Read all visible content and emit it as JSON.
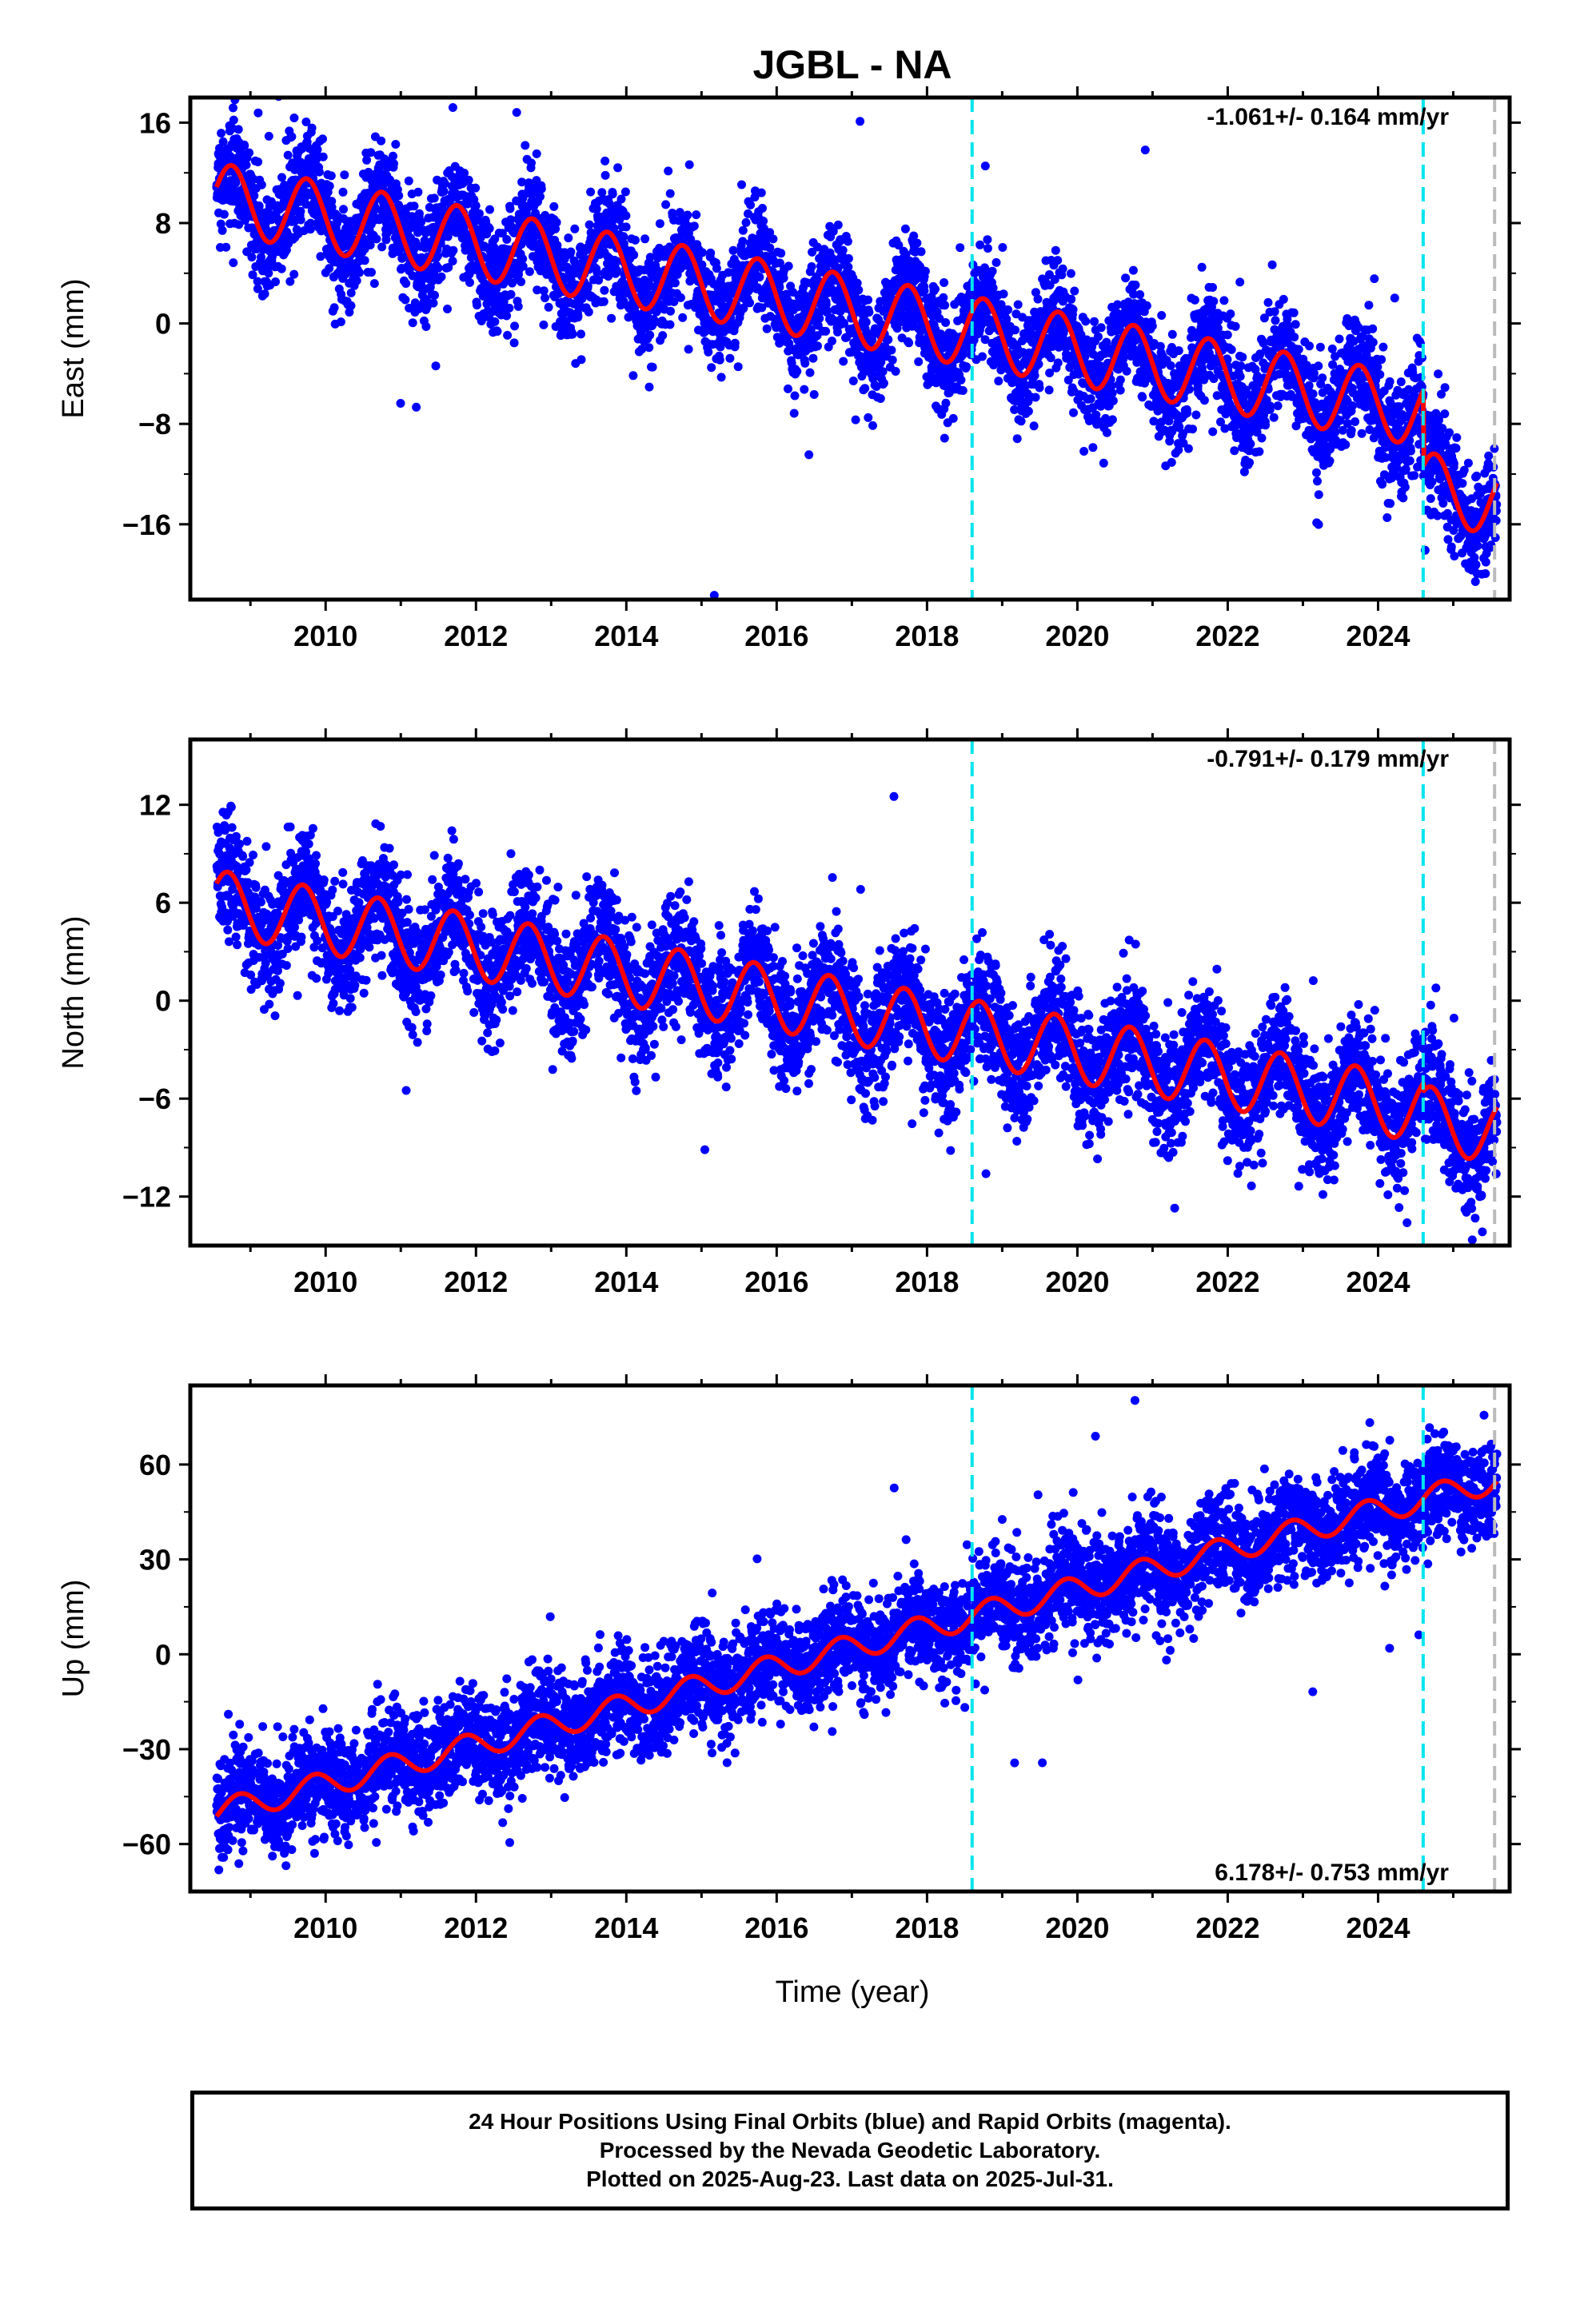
{
  "title": "JGBL - NA",
  "xlabel": "Time (year)",
  "colors": {
    "points": "#0000ff",
    "model": "#ff0000",
    "cyan_marker": "#00e5ee",
    "gray_marker": "#bbbbbb"
  },
  "chart_data": [
    {
      "type": "scatter",
      "ylabel": "East (mm)",
      "rate": "-1.061+/- 0.164 mm/yr",
      "rate_position": "top-right",
      "xlim": [
        2008.2,
        2025.75
      ],
      "ylim": [
        -22,
        18
      ],
      "x_ticks": [
        "2010",
        "2012",
        "2014",
        "2016",
        "2018",
        "2020",
        "2022",
        "2024"
      ],
      "y_ticks": [
        "16",
        "8",
        "0",
        "−8",
        "−16"
      ],
      "y_tick_values": [
        16,
        8,
        0,
        -8,
        -16
      ],
      "markers_cyan": [
        2018.6,
        2024.6
      ],
      "marker_gray": 2025.55,
      "series": [
        {
          "kind": "scatter",
          "x_start": 2008.55,
          "x_end": 2025.58,
          "slope": -1.061,
          "intercept_2008": 10.0,
          "annual_amp": 2.8,
          "annual_phase": 0.5,
          "step_at": 2024.6,
          "step": -6.0,
          "noise": 2.2
        },
        {
          "kind": "line",
          "x_start": 2008.55,
          "x_end": 2025.58,
          "slope": -1.061,
          "intercept_2008": 10.0,
          "annual_amp": 2.8,
          "annual_phase": 0.5,
          "step_at": 2024.6,
          "step": -6.0
        }
      ]
    },
    {
      "type": "scatter",
      "ylabel": "North (mm)",
      "rate": "-0.791+/- 0.179 mm/yr",
      "rate_position": "top-right",
      "xlim": [
        2008.2,
        2025.75
      ],
      "ylim": [
        -15,
        16
      ],
      "x_ticks": [
        "2010",
        "2012",
        "2014",
        "2016",
        "2018",
        "2020",
        "2022",
        "2024"
      ],
      "y_ticks": [
        "12",
        "6",
        "0",
        "−6",
        "−12"
      ],
      "y_tick_values": [
        12,
        6,
        0,
        -6,
        -12
      ],
      "markers_cyan": [
        2018.6,
        2024.6
      ],
      "marker_gray": 2025.55,
      "series": [
        {
          "kind": "scatter",
          "x_start": 2008.55,
          "x_end": 2025.58,
          "slope": -0.791,
          "intercept_2008": 6.0,
          "annual_amp": 2.0,
          "annual_phase": 0.45,
          "step_at": 2024.6,
          "step": -0.5,
          "noise": 1.8
        },
        {
          "kind": "line",
          "x_start": 2008.55,
          "x_end": 2025.58,
          "slope": -0.791,
          "intercept_2008": 6.0,
          "annual_amp": 2.0,
          "annual_phase": 0.45,
          "step_at": 2024.6,
          "step": -0.5
        }
      ]
    },
    {
      "type": "scatter",
      "ylabel": "Up (mm)",
      "rate": "6.178+/- 0.753 mm/yr",
      "rate_position": "bottom-right",
      "xlim": [
        2008.2,
        2025.75
      ],
      "ylim": [
        -75,
        85
      ],
      "x_ticks": [
        "2010",
        "2012",
        "2014",
        "2016",
        "2018",
        "2020",
        "2022",
        "2024"
      ],
      "y_ticks": [
        "60",
        "30",
        "0",
        "−30",
        "−60"
      ],
      "y_tick_values": [
        60,
        30,
        0,
        -30,
        -60
      ],
      "markers_cyan": [
        2018.6,
        2024.6
      ],
      "marker_gray": 2025.55,
      "series": [
        {
          "kind": "scatter",
          "x_start": 2008.55,
          "x_end": 2025.58,
          "slope": 6.178,
          "intercept_2008": -50.0,
          "annual_amp": 4.0,
          "annual_phase": 0.6,
          "step_at": 2024.6,
          "step": 0.0,
          "noise": 8.0
        },
        {
          "kind": "line",
          "x_start": 2008.55,
          "x_end": 2025.58,
          "slope": 6.178,
          "intercept_2008": -50.0,
          "annual_amp": 4.0,
          "annual_phase": 0.6,
          "step_at": 2024.6,
          "step": 0.0
        }
      ]
    }
  ],
  "footer": {
    "line1": "24 Hour Positions Using Final Orbits (blue) and Rapid Orbits (magenta).",
    "line2": "Processed by the Nevada Geodetic Laboratory.",
    "line3": "Plotted on 2025-Aug-23. Last data on 2025-Jul-31."
  }
}
